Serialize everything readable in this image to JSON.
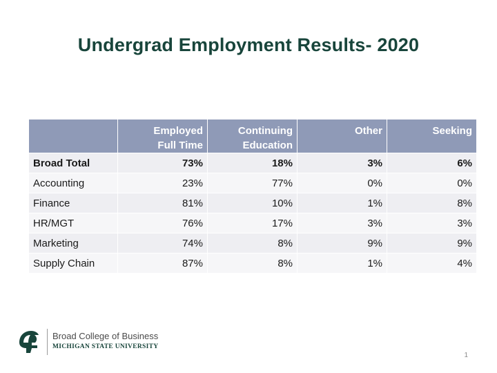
{
  "slide": {
    "title": "Undergrad Employment Results- 2020",
    "page_number": "1"
  },
  "table": {
    "headers": [
      "",
      "Employed\nFull Time",
      "Continuing\nEducation",
      "Other",
      "Seeking"
    ],
    "rows": [
      [
        "Broad Total",
        "73%",
        "18%",
        "3%",
        "6%"
      ],
      [
        "Accounting",
        "23%",
        "77%",
        "0%",
        "0%"
      ],
      [
        "Finance",
        "81%",
        "10%",
        "1%",
        "8%"
      ],
      [
        "HR/MGT",
        "76%",
        "17%",
        "3%",
        "3%"
      ],
      [
        "Marketing",
        "74%",
        "8%",
        "9%",
        "9%"
      ],
      [
        "Supply Chain",
        "87%",
        "8%",
        "1%",
        "4%"
      ]
    ]
  },
  "logo": {
    "line1": "Broad College of Business",
    "line2": "MICHIGAN STATE UNIVERSITY",
    "icon": "spartan-helmet-icon"
  },
  "colors": {
    "title": "#18453B",
    "header_bg": "#8F9AB7",
    "row_even": "#EEEEF2",
    "row_odd": "#F6F6F8"
  }
}
